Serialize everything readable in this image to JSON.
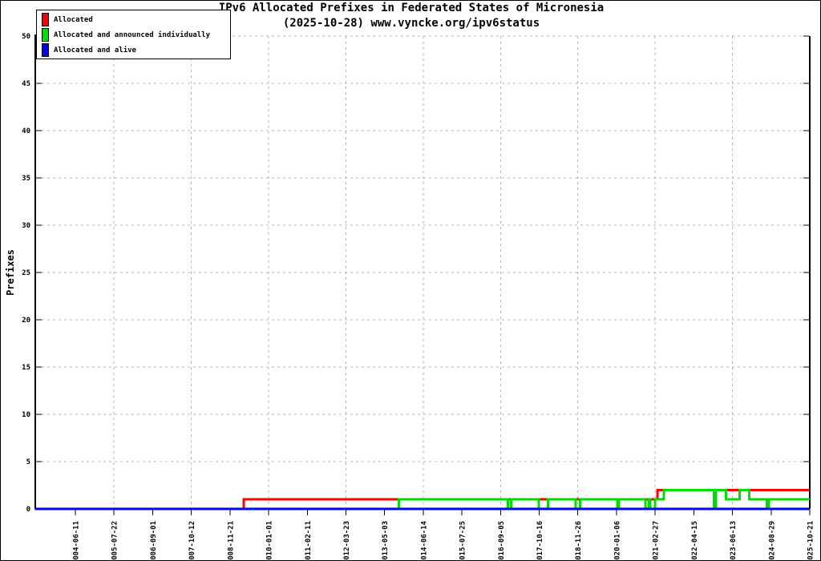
{
  "title": {
    "line1": "IPv6 Allocated Prefixes in Federated States of Micronesia",
    "line2": "(2025-10-28) www.vyncke.org/ipv6status"
  },
  "legend": {
    "position": "top-left",
    "items": [
      {
        "label": "Allocated",
        "color": "#ff0000"
      },
      {
        "label": "Allocated and announced individually",
        "color": "#00dd00"
      },
      {
        "label": "Allocated and alive",
        "color": "#0000ff"
      }
    ]
  },
  "chart_data": {
    "type": "line",
    "step": true,
    "title": "IPv6 Allocated Prefixes in Federated States of Micronesia",
    "subtitle": "(2025-10-28) www.vyncke.org/ipv6status",
    "xlabel": "",
    "ylabel": "Prefixes",
    "ylim": [
      0,
      50
    ],
    "grid": true,
    "legend_position": "top-left",
    "y_ticks": [
      0,
      5,
      10,
      15,
      20,
      25,
      30,
      35,
      40,
      45,
      50
    ],
    "x_ticks": [
      "2004-06-11",
      "2005-07-22",
      "2006-09-01",
      "2007-10-12",
      "2008-11-21",
      "2010-01-01",
      "2011-02-11",
      "2012-03-23",
      "2013-05-03",
      "2014-06-14",
      "2015-07-25",
      "2016-09-05",
      "2017-10-16",
      "2018-11-26",
      "2020-01-06",
      "2021-02-27",
      "2022-04-15",
      "2023-06-13",
      "2024-08-29",
      "2025-10-21"
    ],
    "series": [
      {
        "name": "Allocated",
        "color": "#ff0000",
        "points": [
          [
            "2003-04-12",
            0
          ],
          [
            "2009-04-13",
            1
          ],
          [
            "2021-03-25",
            2
          ],
          [
            "2025-10-21",
            2
          ]
        ]
      },
      {
        "name": "Allocated and announced individually",
        "color": "#00dd00",
        "points": [
          [
            "2003-04-12",
            0
          ],
          [
            "2013-10-02",
            1
          ],
          [
            "2016-11-21",
            0
          ],
          [
            "2016-12-24",
            1
          ],
          [
            "2017-10-10",
            0
          ],
          [
            "2018-01-16",
            1
          ],
          [
            "2018-11-05",
            0
          ],
          [
            "2018-12-20",
            1
          ],
          [
            "2020-01-15",
            0
          ],
          [
            "2020-01-31",
            1
          ],
          [
            "2020-11-13",
            0
          ],
          [
            "2020-12-17",
            1
          ],
          [
            "2021-01-04",
            0
          ],
          [
            "2021-02-27",
            1
          ],
          [
            "2021-06-01",
            2
          ],
          [
            "2022-11-21",
            0
          ],
          [
            "2022-12-16",
            2
          ],
          [
            "2023-04-01",
            1
          ],
          [
            "2023-09-04",
            2
          ],
          [
            "2023-12-23",
            1
          ],
          [
            "2024-07-12",
            0
          ],
          [
            "2024-08-05",
            1
          ],
          [
            "2025-10-21",
            1
          ]
        ]
      },
      {
        "name": "Allocated and alive",
        "color": "#0000ff",
        "points": [
          [
            "2003-04-12",
            0
          ],
          [
            "2025-10-21",
            0
          ]
        ]
      }
    ]
  }
}
